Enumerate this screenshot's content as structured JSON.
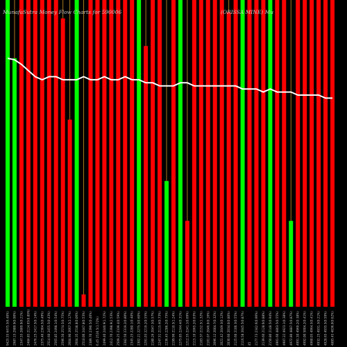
{
  "chart_data": {
    "type": "bar",
    "title_left": "MunafaSutra Money Flow Charts for 590006",
    "title_right": "(ORISSA MINE) Mu",
    "grid": "vertical-lines",
    "background": "#000000",
    "colors": {
      "up": "#00ff00",
      "down": "#ff0000",
      "line": "#ffffff",
      "grid": "#aa7a1e"
    },
    "ylim": [
      0,
      100
    ],
    "categories": [
      "9425.55 6475.5(6.40%)",
      "2987.15 2989.9(0.90%)",
      "2347.55 2889.9(0.21%)",
      "2484.85 2114.65(0.89%)",
      "2476.25 2417.5(0.14%)",
      "2375.40 2304.5(0.49%)",
      "2514.60 2455.5(0.43%)",
      "2565.85 2498.1(0.54%)",
      "2596.50 2574.5(0.75%)",
      "2604.90 2667.5(2.17%)",
      "2604.35 2538.8(0.06%)",
      "2510.00 2447.8(0.53%)",
      "2389.70 2390.5(0.46%)",
      "6.45 2516.5(1.72%)",
      "2499.40 2440.9(1.72%)",
      "2412.70 2398.9(2.53%)",
      "2509.25 2339.4(0.59%)",
      "2382.50 2319.2(0.80%)",
      "2345.25 2280.1(0.40%)",
      "2302.21 2275.3(0.60%)",
      "2291.03 2219.2(0.55%)",
      "2180.26 2047.3(0.57%)",
      "2247.51 2115.4(0.73%)",
      "2236.45 2286.2(0.75%)",
      "2199.99 2110.5(1.24%)",
      "2275.85 2244.4(0.31%)",
      "2212.55 2241.1(0.69%)",
      "2115.10 2065.2(0.63%)",
      "2183.37 2152.5(1.32%)",
      "2101.07 2046.0(0.16%)",
      "2096.12 2004.7(0.32%)",
      "2021.42 2049.3(0.12%)",
      "2030.60 2034.0(0.80%)",
      "2125.60 2100.3(0.55%)",
      "2116.58 2045.5(0.87%)",
      "45",
      "2177.73 2342.6(0.96%)",
      "2139.60 2128.6(0.88%)",
      "2150.80 2148.5(0.94%)",
      "4901.60 4803.5(0.55%)",
      "4907.22 4923.1(0.38%)",
      "4972.80 4887.5(0.87%)",
      "4991.50 4969.2(0.38%)",
      "4992.00 5004.2(0.41%)",
      "4968.05 4964.5(0.41%)",
      "4932.25 4931.3(0.21%)",
      "4928.65 4935.5(0.59%)",
      "4885.45 4836.0(0.62%)"
    ],
    "series": [
      {
        "kind": "bars",
        "direction": [
          "up",
          "up",
          "down",
          "down",
          "down",
          "down",
          "down",
          "down",
          "down",
          "down",
          "up",
          "down",
          "down",
          "down",
          "down",
          "down",
          "down",
          "down",
          "down",
          "up",
          "down",
          "down",
          "down",
          "up",
          "down",
          "up",
          "down",
          "down",
          "down",
          "down",
          "down",
          "down",
          "down",
          "down",
          "up",
          "down",
          "down",
          "down",
          "up",
          "down",
          "down",
          "up",
          "down",
          "down",
          "down",
          "down",
          "down",
          "down"
        ],
        "values": [
          100,
          81,
          100,
          100,
          100,
          100,
          100,
          100,
          94,
          61,
          100,
          4,
          100,
          100,
          100,
          100,
          100,
          100,
          100,
          100,
          85,
          100,
          100,
          41,
          100,
          100,
          28,
          100,
          100,
          100,
          100,
          100,
          96,
          100,
          100,
          100,
          100,
          100,
          100,
          100,
          100,
          28,
          100,
          100,
          100,
          100,
          100,
          100
        ]
      },
      {
        "kind": "line",
        "values": [
          81,
          80.5,
          79,
          77,
          75,
          74,
          75,
          75,
          74,
          74,
          74,
          75,
          74,
          74,
          75,
          74,
          74,
          75,
          74,
          74,
          73,
          73,
          72,
          72,
          72,
          73,
          73,
          72,
          72,
          72,
          72,
          72,
          72,
          72,
          71,
          71,
          71,
          70,
          71,
          70,
          70,
          70,
          69,
          69,
          69,
          69,
          68,
          68
        ]
      }
    ]
  }
}
